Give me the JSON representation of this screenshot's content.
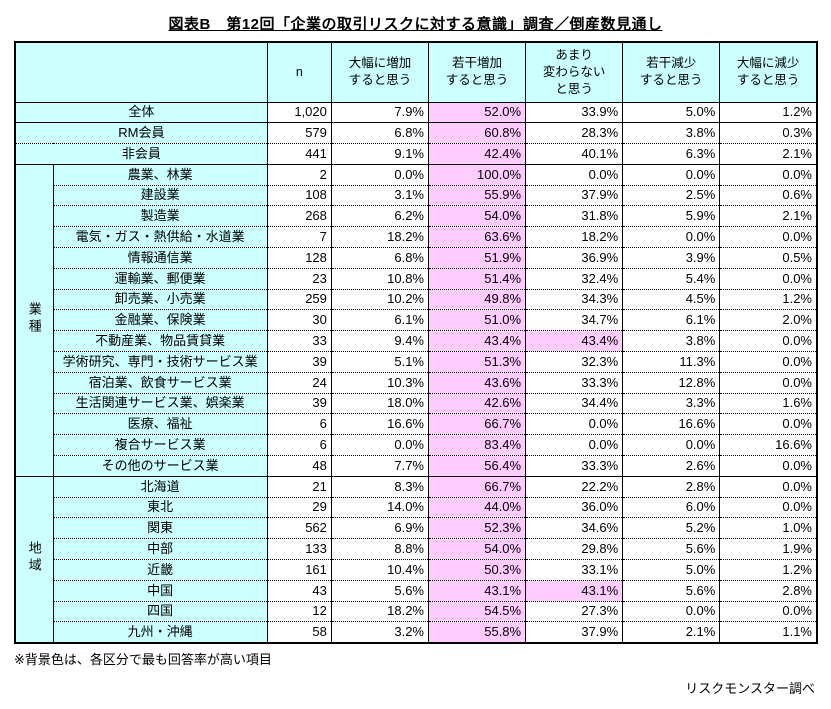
{
  "title": "図表B　第12回「企業の取引リスクに対する意識」調査／倒産数見通し",
  "footnote": "※背景色は、各区分で最も回答率が高い項目",
  "credit": "リスクモンスター調べ",
  "colors": {
    "header_bg": "#CCFFFF",
    "label_bg": "#CCFFFF",
    "highlight_bg": "#FFCCFF",
    "border": "#000000",
    "page_bg": "#FFFFFF"
  },
  "table": {
    "columns": [
      "n",
      "大幅に増加\nすると思う",
      "若干増加\nすると思う",
      "あまり\n変わらない\nと思う",
      "若干減少\nすると思う",
      "大幅に減少\nすると思う"
    ],
    "sections": [
      {
        "group_label": null,
        "rows": [
          {
            "label": "全体",
            "n": "1,020",
            "values": [
              "7.9%",
              "52.0%",
              "33.9%",
              "5.0%",
              "1.2%"
            ],
            "highlight": [
              1
            ],
            "top": "solid"
          },
          {
            "label": "RM会員",
            "n": "579",
            "values": [
              "6.8%",
              "60.8%",
              "28.3%",
              "3.8%",
              "0.3%"
            ],
            "highlight": [
              1
            ],
            "top": "solid"
          },
          {
            "label": "非会員",
            "n": "441",
            "values": [
              "9.1%",
              "42.4%",
              "40.1%",
              "6.3%",
              "2.1%"
            ],
            "highlight": [
              1
            ],
            "top": "dotted"
          }
        ]
      },
      {
        "group_label": "業種",
        "rows": [
          {
            "label": "農業、林業",
            "n": "2",
            "values": [
              "0.0%",
              "100.0%",
              "0.0%",
              "0.0%",
              "0.0%"
            ],
            "highlight": [
              1
            ],
            "top": "solid"
          },
          {
            "label": "建設業",
            "n": "108",
            "values": [
              "3.1%",
              "55.9%",
              "37.9%",
              "2.5%",
              "0.6%"
            ],
            "highlight": [
              1
            ],
            "top": "dotted"
          },
          {
            "label": "製造業",
            "n": "268",
            "values": [
              "6.2%",
              "54.0%",
              "31.8%",
              "5.9%",
              "2.1%"
            ],
            "highlight": [
              1
            ],
            "top": "dotted"
          },
          {
            "label": "電気・ガス・熱供給・水道業",
            "n": "7",
            "values": [
              "18.2%",
              "63.6%",
              "18.2%",
              "0.0%",
              "0.0%"
            ],
            "highlight": [
              1
            ],
            "top": "dotted"
          },
          {
            "label": "情報通信業",
            "n": "128",
            "values": [
              "6.8%",
              "51.9%",
              "36.9%",
              "3.9%",
              "0.5%"
            ],
            "highlight": [
              1
            ],
            "top": "dotted"
          },
          {
            "label": "運輸業、郵便業",
            "n": "23",
            "values": [
              "10.8%",
              "51.4%",
              "32.4%",
              "5.4%",
              "0.0%"
            ],
            "highlight": [
              1
            ],
            "top": "dotted"
          },
          {
            "label": "卸売業、小売業",
            "n": "259",
            "values": [
              "10.2%",
              "49.8%",
              "34.3%",
              "4.5%",
              "1.2%"
            ],
            "highlight": [
              1
            ],
            "top": "dotted"
          },
          {
            "label": "金融業、保険業",
            "n": "30",
            "values": [
              "6.1%",
              "51.0%",
              "34.7%",
              "6.1%",
              "2.0%"
            ],
            "highlight": [
              1
            ],
            "top": "dotted"
          },
          {
            "label": "不動産業、物品賃貸業",
            "n": "33",
            "values": [
              "9.4%",
              "43.4%",
              "43.4%",
              "3.8%",
              "0.0%"
            ],
            "highlight": [
              1,
              2
            ],
            "top": "dotted"
          },
          {
            "label": "学術研究、専門・技術サービス業",
            "n": "39",
            "values": [
              "5.1%",
              "51.3%",
              "32.3%",
              "11.3%",
              "0.0%"
            ],
            "highlight": [
              1
            ],
            "top": "dotted"
          },
          {
            "label": "宿泊業、飲食サービス業",
            "n": "24",
            "values": [
              "10.3%",
              "43.6%",
              "33.3%",
              "12.8%",
              "0.0%"
            ],
            "highlight": [
              1
            ],
            "top": "dotted"
          },
          {
            "label": "生活関連サービス業、娯楽業",
            "n": "39",
            "values": [
              "18.0%",
              "42.6%",
              "34.4%",
              "3.3%",
              "1.6%"
            ],
            "highlight": [
              1
            ],
            "top": "dotted"
          },
          {
            "label": "医療、福祉",
            "n": "6",
            "values": [
              "16.6%",
              "66.7%",
              "0.0%",
              "16.6%",
              "0.0%"
            ],
            "highlight": [
              1
            ],
            "top": "dotted"
          },
          {
            "label": "複合サービス業",
            "n": "6",
            "values": [
              "0.0%",
              "83.4%",
              "0.0%",
              "0.0%",
              "16.6%"
            ],
            "highlight": [
              1
            ],
            "top": "dotted"
          },
          {
            "label": "その他のサービス業",
            "n": "48",
            "values": [
              "7.7%",
              "56.4%",
              "33.3%",
              "2.6%",
              "0.0%"
            ],
            "highlight": [
              1
            ],
            "top": "dotted"
          }
        ]
      },
      {
        "group_label": "地域",
        "rows": [
          {
            "label": "北海道",
            "n": "21",
            "values": [
              "8.3%",
              "66.7%",
              "22.2%",
              "2.8%",
              "0.0%"
            ],
            "highlight": [
              1
            ],
            "top": "solid"
          },
          {
            "label": "東北",
            "n": "29",
            "values": [
              "14.0%",
              "44.0%",
              "36.0%",
              "6.0%",
              "0.0%"
            ],
            "highlight": [
              1
            ],
            "top": "dotted"
          },
          {
            "label": "関東",
            "n": "562",
            "values": [
              "6.9%",
              "52.3%",
              "34.6%",
              "5.2%",
              "1.0%"
            ],
            "highlight": [
              1
            ],
            "top": "dotted"
          },
          {
            "label": "中部",
            "n": "133",
            "values": [
              "8.8%",
              "54.0%",
              "29.8%",
              "5.6%",
              "1.9%"
            ],
            "highlight": [
              1
            ],
            "top": "dotted"
          },
          {
            "label": "近畿",
            "n": "161",
            "values": [
              "10.4%",
              "50.3%",
              "33.1%",
              "5.0%",
              "1.2%"
            ],
            "highlight": [
              1
            ],
            "top": "dotted"
          },
          {
            "label": "中国",
            "n": "43",
            "values": [
              "5.6%",
              "43.1%",
              "43.1%",
              "5.6%",
              "2.8%"
            ],
            "highlight": [
              1,
              2
            ],
            "top": "dotted"
          },
          {
            "label": "四国",
            "n": "12",
            "values": [
              "18.2%",
              "54.5%",
              "27.3%",
              "0.0%",
              "0.0%"
            ],
            "highlight": [
              1
            ],
            "top": "dotted"
          },
          {
            "label": "九州・沖縄",
            "n": "58",
            "values": [
              "3.2%",
              "55.8%",
              "37.9%",
              "2.1%",
              "1.1%"
            ],
            "highlight": [
              1
            ],
            "top": "dotted"
          }
        ]
      }
    ]
  }
}
